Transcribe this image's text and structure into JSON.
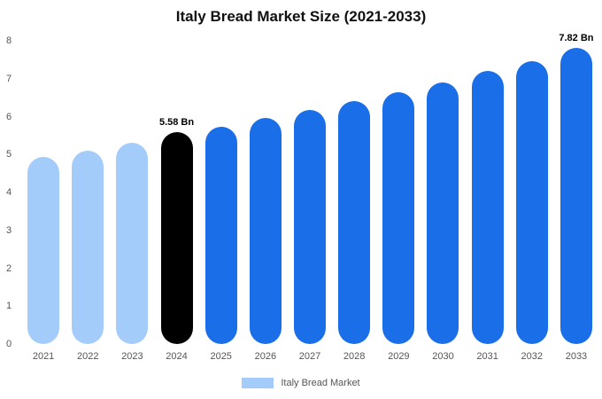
{
  "title": "Italy Bread Market Size (2021-2033)",
  "legend": {
    "label": "Italy Bread Market",
    "swatch_color": "#a3ccfa"
  },
  "colors": {
    "historical": "#a3ccfa",
    "base_year": "#000000",
    "forecast": "#1a6ee8",
    "background": "#ffffff"
  },
  "chart_data": {
    "type": "bar",
    "title": "Italy Bread Market Size (2021-2033)",
    "xlabel": "",
    "ylabel": "",
    "unit": "Bn",
    "ylim": [
      0,
      8
    ],
    "yticks": [
      0,
      1,
      2,
      3,
      4,
      5,
      6,
      7,
      8
    ],
    "grid": false,
    "legend_position": "bottom",
    "categories": [
      "2021",
      "2022",
      "2023",
      "2024",
      "2025",
      "2026",
      "2027",
      "2028",
      "2029",
      "2030",
      "2031",
      "2032",
      "2033"
    ],
    "values": [
      4.93,
      5.11,
      5.3,
      5.58,
      5.74,
      5.96,
      6.18,
      6.4,
      6.65,
      6.91,
      7.2,
      7.46,
      7.82
    ],
    "bar_colors": [
      "#a3ccfa",
      "#a3ccfa",
      "#a3ccfa",
      "#000000",
      "#1a6ee8",
      "#1a6ee8",
      "#1a6ee8",
      "#1a6ee8",
      "#1a6ee8",
      "#1a6ee8",
      "#1a6ee8",
      "#1a6ee8",
      "#1a6ee8"
    ],
    "annotations": [
      {
        "category": "2024",
        "label": "5.58 Bn"
      },
      {
        "category": "2033",
        "label": "7.82 Bn"
      }
    ]
  }
}
